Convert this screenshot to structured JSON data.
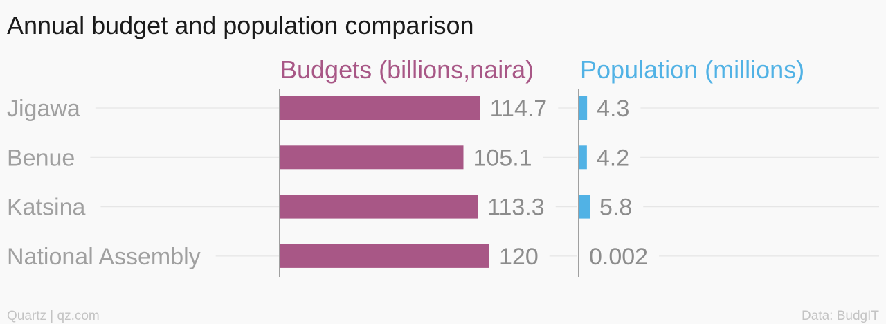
{
  "chart_data": {
    "type": "bar",
    "title": "Annual budget and population comparison",
    "categories": [
      "Jigawa",
      "Benue",
      "Katsina",
      "National Assembly"
    ],
    "series": [
      {
        "name": "Budgets (billions,naira)",
        "color": "#a85786",
        "values": [
          114.7,
          105.1,
          113.3,
          120
        ],
        "labels": [
          "114.7",
          "105.1",
          "113.3",
          "120"
        ]
      },
      {
        "name": "Population (millions)",
        "color": "#51b2e5",
        "values": [
          4.3,
          4.2,
          5.8,
          0.002
        ],
        "labels": [
          "4.3",
          "4.2",
          "5.8",
          "0.002"
        ]
      }
    ],
    "grid": true
  },
  "footer": {
    "source_left": "Quartz | qz.com",
    "source_right": "Data: BudgIT"
  },
  "colors": {
    "background": "#f9f9f9",
    "text": "#1a1a1a",
    "muted": "#a0a0a0"
  }
}
